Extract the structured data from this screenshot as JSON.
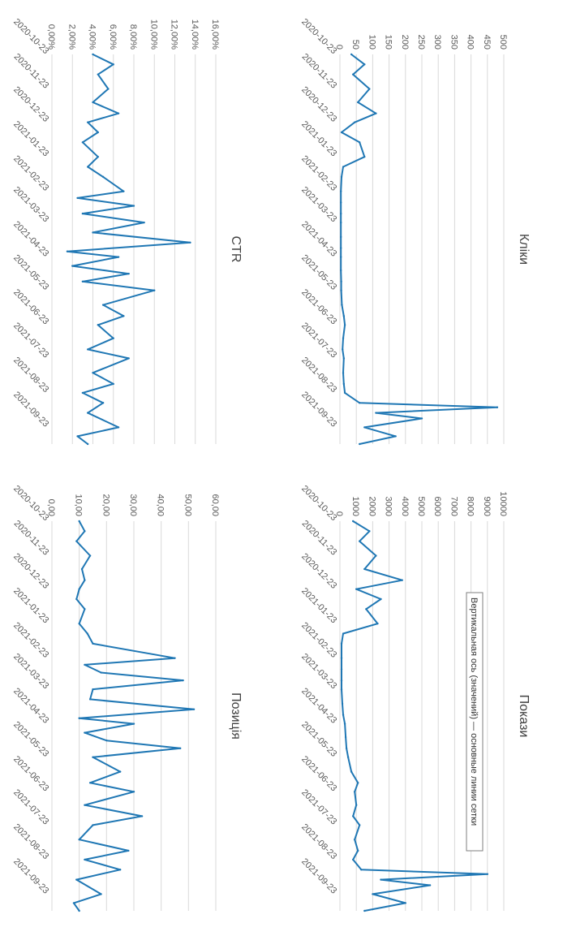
{
  "series_color": "#1f77b4",
  "tooltip": "Вертикальная ось (значений) — основные линии сетки",
  "chart_data": [
    {
      "type": "line",
      "title": "Кліки",
      "ylim": [
        0,
        500
      ],
      "yticks": [
        "0",
        "50",
        "100",
        "150",
        "200",
        "250",
        "300",
        "350",
        "400",
        "450",
        "500"
      ],
      "xticks": [
        "2020-10-23",
        "2020-11-23",
        "2020-12-23",
        "2021-01-23",
        "2021-02-23",
        "2021-03-23",
        "2021-04-23",
        "2021-05-23",
        "2021-06-23",
        "2021-07-23",
        "2021-08-23",
        "2021-09-23"
      ],
      "grid": true,
      "x": [
        "2020-10-23",
        "2020-11-01",
        "2020-11-10",
        "2020-11-23",
        "2020-12-05",
        "2020-12-15",
        "2020-12-23",
        "2021-01-01",
        "2021-01-10",
        "2021-01-23",
        "2021-02-01",
        "2021-02-10",
        "2021-02-23",
        "2021-03-05",
        "2021-03-15",
        "2021-03-23",
        "2021-04-05",
        "2021-04-15",
        "2021-04-23",
        "2021-05-05",
        "2021-05-15",
        "2021-05-23",
        "2021-06-05",
        "2021-06-15",
        "2021-06-23",
        "2021-07-05",
        "2021-07-15",
        "2021-07-23",
        "2021-08-05",
        "2021-08-15",
        "2021-08-23",
        "2021-09-01",
        "2021-09-05",
        "2021-09-10",
        "2021-09-15",
        "2021-09-23",
        "2021-10-01",
        "2021-10-08"
      ],
      "values": [
        35,
        75,
        40,
        90,
        55,
        110,
        45,
        5,
        60,
        75,
        10,
        5,
        3,
        3,
        3,
        3,
        3,
        3,
        3,
        3,
        4,
        4,
        6,
        12,
        15,
        10,
        8,
        12,
        10,
        12,
        15,
        60,
        480,
        110,
        250,
        75,
        170,
        60
      ]
    },
    {
      "type": "line",
      "title": "CTR",
      "ylim": [
        0,
        16
      ],
      "yticks": [
        "0,00%",
        "2,00%",
        "4,00%",
        "6,00%",
        "8,00%",
        "10,00%",
        "12,00%",
        "14,00%",
        "16,00%"
      ],
      "xticks": [
        "2020-10-23",
        "2020-11-23",
        "2020-12-23",
        "2021-01-23",
        "2021-02-23",
        "2021-03-23",
        "2021-04-23",
        "2021-05-23",
        "2021-06-23",
        "2021-07-23",
        "2021-08-23",
        "2021-09-23"
      ],
      "grid": true,
      "x": [
        "2020-10-23",
        "2020-11-01",
        "2020-11-10",
        "2020-11-23",
        "2020-12-05",
        "2020-12-15",
        "2020-12-23",
        "2021-01-01",
        "2021-01-10",
        "2021-01-23",
        "2021-02-01",
        "2021-02-10",
        "2021-02-23",
        "2021-03-01",
        "2021-03-08",
        "2021-03-15",
        "2021-03-23",
        "2021-04-01",
        "2021-04-10",
        "2021-04-18",
        "2021-04-23",
        "2021-05-01",
        "2021-05-08",
        "2021-05-15",
        "2021-05-23",
        "2021-06-05",
        "2021-06-15",
        "2021-06-23",
        "2021-07-05",
        "2021-07-15",
        "2021-07-23",
        "2021-08-05",
        "2021-08-15",
        "2021-08-23",
        "2021-09-01",
        "2021-09-10",
        "2021-09-23",
        "2021-10-01",
        "2021-10-08"
      ],
      "values": [
        4.0,
        6.0,
        4.5,
        5.5,
        4.0,
        6.5,
        3.5,
        4.5,
        3.0,
        4.5,
        3.5,
        5.0,
        7.0,
        2.5,
        8.0,
        3.0,
        9.0,
        4.0,
        13.5,
        1.5,
        6.5,
        2.0,
        7.5,
        3.0,
        10.0,
        5.0,
        7.0,
        4.5,
        6.0,
        3.5,
        7.5,
        4.0,
        6.0,
        3.0,
        5.0,
        3.5,
        6.5,
        2.5,
        3.5
      ]
    },
    {
      "type": "line",
      "title": "Покази",
      "ylim": [
        0,
        10000
      ],
      "yticks": [
        "0",
        "1000",
        "2000",
        "3000",
        "4000",
        "5000",
        "6000",
        "7000",
        "8000",
        "9000",
        "10000"
      ],
      "xticks": [
        "2020-10-23",
        "2020-11-23",
        "2020-12-23",
        "2021-01-23",
        "2021-02-23",
        "2021-03-23",
        "2021-04-23",
        "2021-05-23",
        "2021-06-23",
        "2021-07-23",
        "2021-08-23",
        "2021-09-23"
      ],
      "grid": true,
      "x": [
        "2020-10-23",
        "2020-11-01",
        "2020-11-10",
        "2020-11-23",
        "2020-12-05",
        "2020-12-15",
        "2020-12-23",
        "2021-01-01",
        "2021-01-10",
        "2021-01-23",
        "2021-02-01",
        "2021-02-10",
        "2021-02-23",
        "2021-03-05",
        "2021-03-15",
        "2021-03-23",
        "2021-04-05",
        "2021-04-15",
        "2021-04-23",
        "2021-05-05",
        "2021-05-15",
        "2021-05-23",
        "2021-06-05",
        "2021-06-15",
        "2021-06-23",
        "2021-07-05",
        "2021-07-15",
        "2021-07-23",
        "2021-08-05",
        "2021-08-15",
        "2021-08-23",
        "2021-09-01",
        "2021-09-05",
        "2021-09-10",
        "2021-09-15",
        "2021-09-23",
        "2021-10-01",
        "2021-10-08"
      ],
      "values": [
        800,
        1800,
        1200,
        2200,
        1500,
        3800,
        1000,
        2500,
        1600,
        2300,
        200,
        100,
        100,
        100,
        100,
        100,
        150,
        200,
        300,
        350,
        400,
        500,
        700,
        1100,
        900,
        1000,
        800,
        1200,
        900,
        1100,
        800,
        1300,
        9000,
        2500,
        5500,
        2000,
        4000,
        1500
      ]
    },
    {
      "type": "line",
      "title": "Позиція",
      "ylim": [
        0,
        60
      ],
      "yticks": [
        "0,00",
        "10,00",
        "20,00",
        "30,00",
        "40,00",
        "50,00",
        "60,00"
      ],
      "xticks": [
        "2020-10-23",
        "2020-11-23",
        "2020-12-23",
        "2021-01-23",
        "2021-02-23",
        "2021-03-23",
        "2021-04-23",
        "2021-05-23",
        "2021-06-23",
        "2021-07-23",
        "2021-08-23",
        "2021-09-23"
      ],
      "grid": true,
      "x": [
        "2020-10-23",
        "2020-11-01",
        "2020-11-10",
        "2020-11-23",
        "2020-12-05",
        "2020-12-15",
        "2020-12-23",
        "2021-01-01",
        "2021-01-10",
        "2021-01-23",
        "2021-02-01",
        "2021-02-10",
        "2021-02-23",
        "2021-03-01",
        "2021-03-08",
        "2021-03-15",
        "2021-03-23",
        "2021-04-01",
        "2021-04-10",
        "2021-04-18",
        "2021-04-23",
        "2021-05-01",
        "2021-05-08",
        "2021-05-15",
        "2021-05-23",
        "2021-06-05",
        "2021-06-15",
        "2021-06-23",
        "2021-07-05",
        "2021-07-15",
        "2021-07-23",
        "2021-08-05",
        "2021-08-15",
        "2021-08-23",
        "2021-09-01",
        "2021-09-10",
        "2021-09-23",
        "2021-10-01",
        "2021-10-08"
      ],
      "values": [
        10,
        12,
        9,
        14,
        11,
        12,
        10,
        9,
        12,
        10,
        13,
        15,
        45,
        12,
        18,
        48,
        15,
        14,
        52,
        10,
        30,
        12,
        20,
        47,
        15,
        25,
        14,
        30,
        12,
        33,
        15,
        10,
        28,
        12,
        25,
        9,
        18,
        8,
        10
      ]
    }
  ]
}
